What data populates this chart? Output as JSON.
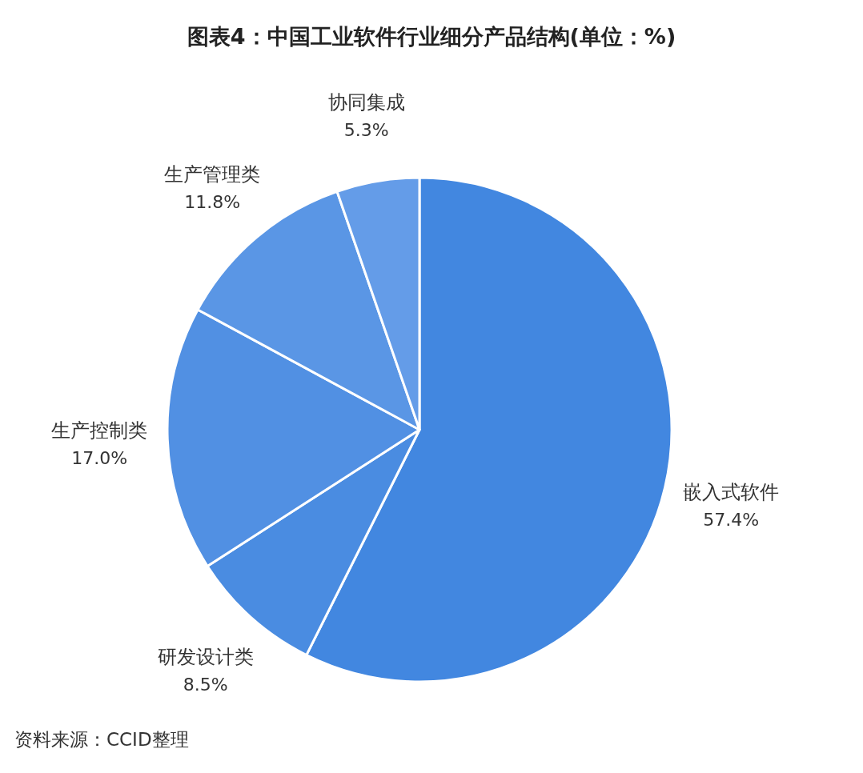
{
  "chart_data": {
    "type": "pie",
    "title": "图表4：中国工业软件行业细分产品结构(单位：%)",
    "categories": [
      "嵌入式软件",
      "研发设计类",
      "生产控制类",
      "生产管理类",
      "协同集成"
    ],
    "values": [
      57.4,
      8.5,
      17.0,
      11.8,
      5.3
    ],
    "value_labels": [
      "57.4%",
      "8.5%",
      "17.0%",
      "11.8%",
      "5.3%"
    ],
    "colors": [
      "#4287e0",
      "#4a8ce1",
      "#5190e3",
      "#5a96e5",
      "#649ce8"
    ],
    "annotations": [
      "资料来源：CCID整理"
    ]
  }
}
